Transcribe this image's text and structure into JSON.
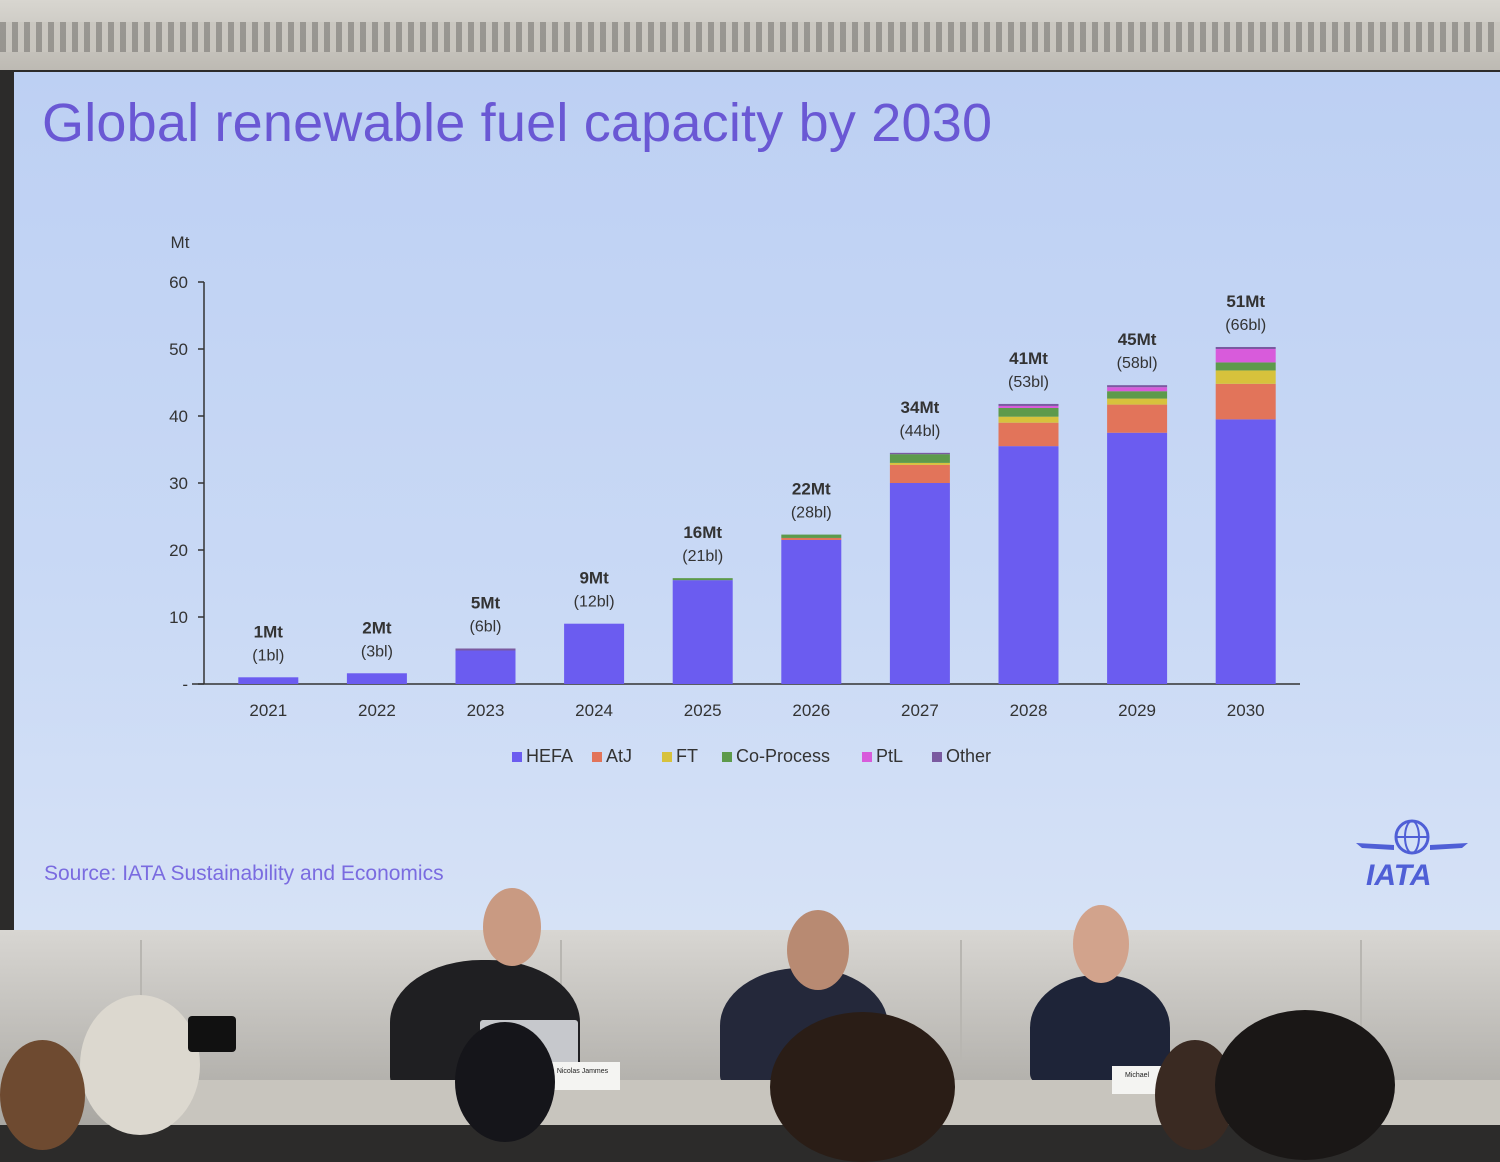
{
  "slide": {
    "title": "Global renewable fuel capacity by 2030",
    "source": "Source: IATA Sustainability and Economics",
    "logo_text": "IATA"
  },
  "people": {
    "nameplate_left": "Nicolas Jammes",
    "nameplate_right": "Michael"
  },
  "colors": {
    "HEFA": "#6b5cf0",
    "AtJ": "#e2745a",
    "FT": "#d7c23c",
    "Co-Process": "#5d9a4b",
    "PtL": "#d85bdb",
    "Other": "#7a5aa0",
    "title": "#6a58d4"
  },
  "chart_data": {
    "type": "bar",
    "stacked": true,
    "title": "Global renewable fuel capacity by 2030",
    "ylabel": "Mt",
    "xlabel": "",
    "ylim": [
      0,
      60
    ],
    "yticks": [
      "-",
      "10",
      "20",
      "30",
      "40",
      "50",
      "60"
    ],
    "categories": [
      "2021",
      "2022",
      "2023",
      "2024",
      "2025",
      "2026",
      "2027",
      "2028",
      "2029",
      "2030"
    ],
    "series": [
      {
        "name": "HEFA",
        "values": [
          1,
          1.6,
          5,
          9,
          15.5,
          21.5,
          30,
          35.5,
          37.5,
          39.5
        ]
      },
      {
        "name": "AtJ",
        "values": [
          0,
          0,
          0,
          0,
          0,
          0.3,
          2.7,
          3.5,
          4.2,
          5.3
        ]
      },
      {
        "name": "FT",
        "values": [
          0,
          0,
          0,
          0,
          0,
          0,
          0.3,
          0.9,
          0.9,
          2.0
        ]
      },
      {
        "name": "Co-Process",
        "values": [
          0,
          0,
          0,
          0,
          0.3,
          0.5,
          1.3,
          1.3,
          1.1,
          1.2
        ]
      },
      {
        "name": "PtL",
        "values": [
          0,
          0,
          0,
          0,
          0,
          0,
          0,
          0.3,
          0.6,
          2.0
        ]
      },
      {
        "name": "Other",
        "values": [
          0,
          0,
          0.3,
          0,
          0,
          0,
          0.2,
          0.3,
          0.3,
          0.3
        ]
      }
    ],
    "total_labels": [
      "1Mt",
      "2Mt",
      "5Mt",
      "9Mt",
      "16Mt",
      "22Mt",
      "34Mt",
      "41Mt",
      "45Mt",
      "51Mt"
    ],
    "sub_labels": [
      "(1bl)",
      "(3bl)",
      "(6bl)",
      "(12bl)",
      "(21bl)",
      "(28bl)",
      "(44bl)",
      "(53bl)",
      "(58bl)",
      "(66bl)"
    ],
    "legend": [
      "HEFA",
      "AtJ",
      "FT",
      "Co-Process",
      "PtL",
      "Other"
    ],
    "legend_position": "bottom",
    "grid": false
  }
}
